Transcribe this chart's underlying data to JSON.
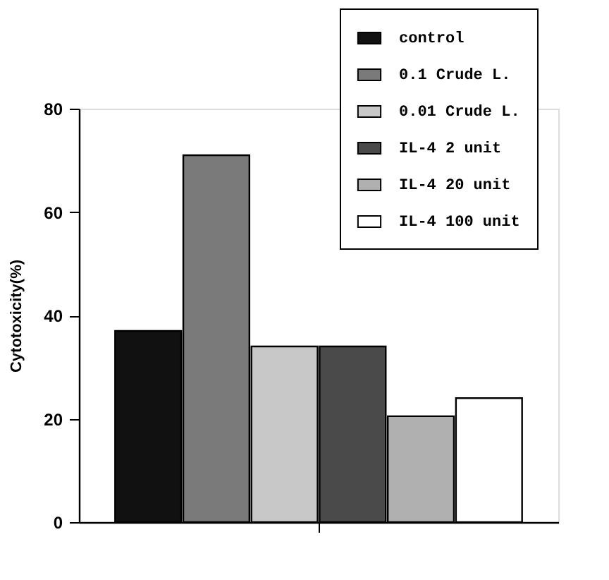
{
  "chart_data": {
    "type": "bar",
    "ylabel": "Cytotoxicity(%)",
    "categories": [
      null
    ],
    "series": [
      {
        "name": "control",
        "color": "#111111",
        "values": [
          37
        ]
      },
      {
        "name": "0.1 Crude L.",
        "color": "#7a7a7a",
        "values": [
          71
        ]
      },
      {
        "name": "0.01 Crude L.",
        "color": "#c8c8c8",
        "values": [
          34
        ]
      },
      {
        "name": "IL-4 2 unit",
        "color": "#4a4a4a",
        "values": [
          34
        ]
      },
      {
        "name": "IL-4 20 unit",
        "color": "#b0b0b0",
        "values": [
          20.5
        ]
      },
      {
        "name": "IL-4 100 unit",
        "color": "#ffffff",
        "values": [
          24
        ]
      }
    ],
    "ylim": [
      0,
      80
    ],
    "yticks": [
      0,
      20,
      40,
      60,
      80
    ],
    "grid": false,
    "legend": "top right",
    "tick_labels": "y"
  }
}
